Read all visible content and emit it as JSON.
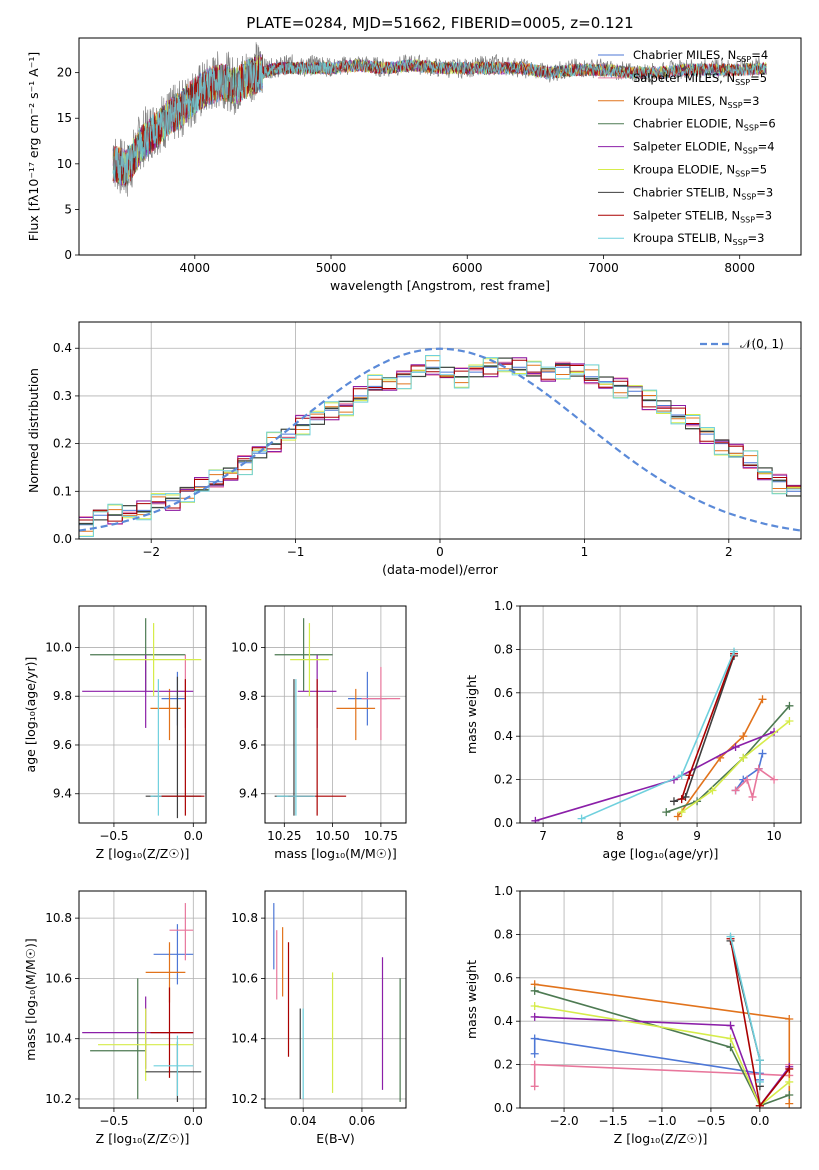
{
  "title": "PLATE=0284, MJD=51662, FIBERID=0005, z=0.121",
  "series_styles": [
    {
      "name": "Chabrier MILES",
      "nssp": "4",
      "color": "#4d77d6"
    },
    {
      "name": "Salpeter MILES",
      "nssp": "5",
      "color": "#e8779c"
    },
    {
      "name": "Kroupa MILES",
      "nssp": "3",
      "color": "#e1731c"
    },
    {
      "name": "Chabrier ELODIE",
      "nssp": "6",
      "color": "#4d7a52"
    },
    {
      "name": "Salpeter ELODIE",
      "nssp": "4",
      "color": "#8b1fa8"
    },
    {
      "name": "Kroupa ELODIE",
      "nssp": "5",
      "color": "#d6ec4a"
    },
    {
      "name": "Chabrier STELIB",
      "nssp": "3",
      "color": "#3e3e3e"
    },
    {
      "name": "Salpeter STELIB",
      "nssp": "3",
      "color": "#aa0000"
    },
    {
      "name": "Kroupa STELIB",
      "nssp": "3",
      "color": "#6fd0dd"
    }
  ],
  "chart_data": [
    {
      "id": "spectrum",
      "type": "line",
      "title": "PLATE=0284, MJD=51662, FIBERID=0005, z=0.121",
      "xlabel": "wavelength [Angstrom, rest frame]",
      "ylabel": "Flux [fλ10⁻¹⁷ erg cm⁻² s⁻¹ A⁻¹]",
      "xlim": [
        3150,
        8450
      ],
      "ylim": [
        0,
        23.8
      ],
      "xticks": [
        4000,
        5000,
        6000,
        7000,
        8000
      ],
      "yticks": [
        0,
        5,
        10,
        15,
        20
      ],
      "legend": "upper-right",
      "data_curve": {
        "color": "#808080",
        "x": [
          3400,
          3500,
          3600,
          3700,
          3800,
          3900,
          4000,
          4100,
          4200,
          4300,
          4400,
          4500,
          4600,
          4700,
          4800,
          4900,
          5000,
          5200,
          5400,
          5600,
          5800,
          6000,
          6200,
          6400,
          6600,
          6800,
          7000,
          7200,
          7400,
          7600,
          7800,
          8000,
          8200
        ],
        "y": [
          10.5,
          9,
          12.5,
          14,
          15,
          16,
          17.5,
          18.5,
          19.5,
          18.5,
          20,
          20.5,
          20.5,
          21,
          20.5,
          21,
          20.5,
          21,
          20.5,
          21,
          20.5,
          20.5,
          21,
          20.5,
          20,
          20.5,
          20.5,
          20,
          20,
          20.5,
          20.5,
          20.5,
          20.8
        ]
      },
      "model_curves": {
        "x": [
          3400,
          3500,
          3600,
          3700,
          3800,
          3900,
          4000,
          4100,
          4200,
          4300,
          4400,
          4500,
          4600,
          4700,
          4800,
          4900,
          5000,
          5200,
          5400,
          5600,
          5800,
          6000,
          6200,
          6400,
          6600,
          6800,
          7000,
          7200,
          7400,
          7600,
          7800,
          8000,
          8200
        ],
        "y": [
          10,
          9.5,
          12,
          13.5,
          15,
          16,
          17.5,
          18.5,
          19,
          18.5,
          19.5,
          20,
          20.5,
          20.5,
          20.5,
          20.5,
          20.5,
          20.8,
          20.5,
          20.8,
          20.5,
          20.5,
          20.5,
          20.5,
          20,
          20.3,
          20.3,
          20,
          20,
          20.3,
          20.3,
          20.3,
          20.5
        ]
      }
    },
    {
      "id": "residuals",
      "type": "histogram",
      "xlabel": "(data-model)/error",
      "ylabel": "Normed distribution",
      "xlim": [
        -2.5,
        2.5
      ],
      "ylim": [
        0,
        0.455
      ],
      "xticks": [
        -2,
        -1,
        0,
        1,
        2
      ],
      "yticks": [
        0,
        0.1,
        0.2,
        0.3,
        0.4
      ],
      "legend_label": "𝒩(0, 1)",
      "gaussian": {
        "mu": 0,
        "sigma": 1,
        "color": "#5b8ad8"
      },
      "bin_width": 0.1,
      "hist": [
        0.03,
        0.05,
        0.05,
        0.06,
        0.06,
        0.075,
        0.08,
        0.1,
        0.11,
        0.12,
        0.14,
        0.16,
        0.18,
        0.2,
        0.22,
        0.24,
        0.25,
        0.27,
        0.28,
        0.3,
        0.32,
        0.33,
        0.34,
        0.35,
        0.36,
        0.35,
        0.34,
        0.35,
        0.36,
        0.37,
        0.36,
        0.35,
        0.35,
        0.36,
        0.35,
        0.34,
        0.33,
        0.32,
        0.31,
        0.29,
        0.28,
        0.26,
        0.24,
        0.22,
        0.2,
        0.18,
        0.16,
        0.14,
        0.12,
        0.1
      ],
      "hist_offsets": [
        0.0,
        0.02,
        -0.015,
        0.01,
        -0.02,
        0.025,
        -0.01,
        0.015,
        -0.025
      ]
    },
    {
      "id": "age-vs-Z",
      "type": "errorbar",
      "xlabel": "Z [log₁₀(Z/Z☉)]",
      "ylabel": "age  [log₁₀(age/yr)]",
      "xlim": [
        -0.72,
        0.08
      ],
      "ylim": [
        9.28,
        10.17
      ],
      "xticks": [
        -0.5,
        0.0
      ],
      "yticks": [
        9.4,
        9.6,
        9.8,
        10.0
      ],
      "points": [
        {
          "x": -0.1,
          "xerr": [
            0.1,
            0.05
          ],
          "y": 9.79,
          "yerr": [
            0.11,
            0.11
          ]
        },
        {
          "x": -0.05,
          "xerr": [
            0.05,
            0.0
          ],
          "y": 9.82,
          "yerr": [
            0.15,
            0.15
          ]
        },
        {
          "x": -0.15,
          "xerr": [
            0.12,
            0.07
          ],
          "y": 9.75,
          "yerr": [
            0.13,
            0.08
          ]
        },
        {
          "x": -0.3,
          "xerr": [
            0.35,
            0.25
          ],
          "y": 9.97,
          "yerr": [
            0.15,
            0.15
          ]
        },
        {
          "x": -0.3,
          "xerr": [
            0.4,
            0.3
          ],
          "y": 9.82,
          "yerr": [
            0.15,
            0.15
          ]
        },
        {
          "x": -0.25,
          "xerr": [
            0.25,
            0.3
          ],
          "y": 9.95,
          "yerr": [
            0.15,
            0.15
          ]
        },
        {
          "x": -0.1,
          "xerr": [
            0.2,
            0.15
          ],
          "y": 9.39,
          "yerr": [
            0.09,
            0.49
          ]
        },
        {
          "x": -0.05,
          "xerr": [
            0.2,
            0.12
          ],
          "y": 9.39,
          "yerr": [
            0.08,
            0.48
          ]
        },
        {
          "x": -0.22,
          "xerr": [
            0.05,
            0.02
          ],
          "y": 9.39,
          "yerr": [
            0.08,
            0.48
          ]
        }
      ]
    },
    {
      "id": "age-vs-mass",
      "type": "errorbar",
      "xlabel": "mass [log₁₀(M/M☉)]",
      "ylabel": "",
      "xlim": [
        10.15,
        10.88
      ],
      "ylim": [
        9.28,
        10.17
      ],
      "xticks": [
        10.25,
        10.5,
        10.75
      ],
      "yticks": [
        9.4,
        9.6,
        9.8,
        10.0
      ],
      "points": [
        {
          "x": 10.68,
          "xerr": [
            0.1,
            0.1
          ],
          "y": 9.79,
          "yerr": [
            0.11,
            0.11
          ]
        },
        {
          "x": 10.75,
          "xerr": [
            0.1,
            0.1
          ],
          "y": 9.79,
          "yerr": [
            0.17,
            0.13
          ]
        },
        {
          "x": 10.62,
          "xerr": [
            0.1,
            0.1
          ],
          "y": 9.75,
          "yerr": [
            0.13,
            0.08
          ]
        },
        {
          "x": 10.35,
          "xerr": [
            0.15,
            0.15
          ],
          "y": 9.97,
          "yerr": [
            0.15,
            0.15
          ]
        },
        {
          "x": 10.42,
          "xerr": [
            0.1,
            0.1
          ],
          "y": 9.82,
          "yerr": [
            0.15,
            0.15
          ]
        },
        {
          "x": 10.38,
          "xerr": [
            0.1,
            0.1
          ],
          "y": 9.95,
          "yerr": [
            0.15,
            0.15
          ]
        },
        {
          "x": 10.3,
          "xerr": [
            0.1,
            0.1
          ],
          "y": 9.39,
          "yerr": [
            0.08,
            0.48
          ]
        },
        {
          "x": 10.42,
          "xerr": [
            0.15,
            0.15
          ],
          "y": 9.39,
          "yerr": [
            0.08,
            0.48
          ]
        },
        {
          "x": 10.31,
          "xerr": [
            0.1,
            0.1
          ],
          "y": 9.39,
          "yerr": [
            0.08,
            0.48
          ]
        }
      ]
    },
    {
      "id": "weight-vs-age",
      "type": "line",
      "xlabel": "age  [log₁₀(age/yr)]",
      "ylabel": "mass weight",
      "xlim": [
        6.7,
        10.35
      ],
      "ylim": [
        0,
        1.0
      ],
      "xticks": [
        7,
        8,
        9,
        10
      ],
      "yticks": [
        0.0,
        0.2,
        0.4,
        0.6,
        0.8,
        1.0
      ],
      "series": [
        {
          "x": [
            9.5,
            9.6,
            9.8,
            9.85
          ],
          "y": [
            0.15,
            0.2,
            0.25,
            0.32
          ]
        },
        {
          "x": [
            9.5,
            9.65,
            9.72,
            9.8,
            10.0
          ],
          "y": [
            0.15,
            0.2,
            0.12,
            0.25,
            0.2
          ]
        },
        {
          "x": [
            8.75,
            9.3,
            9.6,
            9.85
          ],
          "y": [
            0.03,
            0.3,
            0.4,
            0.57
          ]
        },
        {
          "x": [
            8.6,
            9.0,
            9.6,
            10.2
          ],
          "y": [
            0.05,
            0.1,
            0.3,
            0.54
          ]
        },
        {
          "x": [
            6.9,
            8.7,
            9.5,
            10.0
          ],
          "y": [
            0.01,
            0.2,
            0.35,
            0.42
          ]
        },
        {
          "x": [
            8.8,
            9.2,
            9.6,
            10.2
          ],
          "y": [
            0.05,
            0.15,
            0.3,
            0.47
          ]
        },
        {
          "x": [
            8.7,
            8.85,
            9.48
          ],
          "y": [
            0.1,
            0.12,
            0.77
          ]
        },
        {
          "x": [
            8.8,
            8.9,
            9.48
          ],
          "y": [
            0.11,
            0.22,
            0.78
          ]
        },
        {
          "x": [
            7.5,
            8.8,
            9.48
          ],
          "y": [
            0.02,
            0.22,
            0.79
          ]
        }
      ]
    },
    {
      "id": "mass-vs-Z",
      "type": "errorbar",
      "xlabel": "Z [log₁₀(Z/Z☉)]",
      "ylabel": "mass [log₁₀(M/M☉)]",
      "xlim": [
        -0.72,
        0.08
      ],
      "ylim": [
        10.17,
        10.89
      ],
      "xticks": [
        -0.5,
        0.0
      ],
      "yticks": [
        10.2,
        10.4,
        10.6,
        10.8
      ],
      "points": [
        {
          "x": -0.1,
          "xerr": [
            0.15,
            0.1
          ],
          "y": 10.68,
          "yerr": [
            0.1,
            0.1
          ]
        },
        {
          "x": -0.05,
          "xerr": [
            0.1,
            0.05
          ],
          "y": 10.76,
          "yerr": [
            0.1,
            0.09
          ]
        },
        {
          "x": -0.15,
          "xerr": [
            0.15,
            0.1
          ],
          "y": 10.62,
          "yerr": [
            0.1,
            0.1
          ]
        },
        {
          "x": -0.35,
          "xerr": [
            0.3,
            0.05
          ],
          "y": 10.36,
          "yerr": [
            0.16,
            0.24
          ]
        },
        {
          "x": -0.3,
          "xerr": [
            0.4,
            0.3
          ],
          "y": 10.42,
          "yerr": [
            0.12,
            0.12
          ]
        },
        {
          "x": -0.3,
          "xerr": [
            0.3,
            0.3
          ],
          "y": 10.38,
          "yerr": [
            0.12,
            0.12
          ]
        },
        {
          "x": -0.1,
          "xerr": [
            0.2,
            0.15
          ],
          "y": 10.29,
          "yerr": [
            0.1,
            0.1
          ]
        },
        {
          "x": -0.15,
          "xerr": [
            0.12,
            0.15
          ],
          "y": 10.42,
          "yerr": [
            0.15,
            0.15
          ]
        },
        {
          "x": -0.1,
          "xerr": [
            0.15,
            0.1
          ],
          "y": 10.31,
          "yerr": [
            0.1,
            0.1
          ]
        }
      ]
    },
    {
      "id": "mass-vs-EBV",
      "type": "errorbar",
      "xlabel": "E(B-V)",
      "ylabel": "",
      "xlim": [
        0.027,
        0.075
      ],
      "ylim": [
        10.17,
        10.89
      ],
      "xticks": [
        0.04,
        0.06
      ],
      "yticks": [
        10.2,
        10.4,
        10.6,
        10.8
      ],
      "points": [
        {
          "x": 0.03,
          "xerr": [
            0,
            0
          ],
          "y": 10.75,
          "yerr": [
            0.12,
            0.1
          ]
        },
        {
          "x": 0.031,
          "xerr": [
            0,
            0
          ],
          "y": 10.65,
          "yerr": [
            0.12,
            0.11
          ]
        },
        {
          "x": 0.033,
          "xerr": [
            0,
            0
          ],
          "y": 10.65,
          "yerr": [
            0.11,
            0.12
          ]
        },
        {
          "x": 0.073,
          "xerr": [
            0,
            0
          ],
          "y": 10.4,
          "yerr": [
            0.21,
            0.2
          ]
        },
        {
          "x": 0.067,
          "xerr": [
            0,
            0
          ],
          "y": 10.45,
          "yerr": [
            0.22,
            0.22
          ]
        },
        {
          "x": 0.05,
          "xerr": [
            0,
            0
          ],
          "y": 10.42,
          "yerr": [
            0.2,
            0.2
          ]
        },
        {
          "x": 0.039,
          "xerr": [
            0,
            0
          ],
          "y": 10.35,
          "yerr": [
            0.15,
            0.15
          ]
        },
        {
          "x": 0.035,
          "xerr": [
            0,
            0
          ],
          "y": 10.5,
          "yerr": [
            0.16,
            0.22
          ]
        },
        {
          "x": 0.04,
          "xerr": [
            0,
            0
          ],
          "y": 10.35,
          "yerr": [
            0.15,
            0.15
          ]
        }
      ]
    },
    {
      "id": "weight-vs-Z",
      "type": "line",
      "xlabel": "Z [log₁₀(Z/Z☉)]",
      "ylabel": "mass weight",
      "xlim": [
        -2.45,
        0.42
      ],
      "ylim": [
        0,
        1.0
      ],
      "xticks": [
        -2.0,
        -1.5,
        -1.0,
        -0.5,
        0.0
      ],
      "yticks": [
        0.0,
        0.2,
        0.4,
        0.6,
        0.8,
        1.0
      ],
      "series": [
        {
          "x": [
            -2.3,
            -2.3,
            0.0,
            0.0
          ],
          "y": [
            0.25,
            0.32,
            0.16,
            0.13
          ]
        },
        {
          "x": [
            -2.3,
            -2.3,
            0.3,
            0.3
          ],
          "y": [
            0.1,
            0.2,
            0.15,
            0.2
          ]
        },
        {
          "x": [
            -2.3,
            0.3,
            0.3
          ],
          "y": [
            0.57,
            0.41,
            0.02
          ]
        },
        {
          "x": [
            -2.3,
            -0.3,
            0.0,
            0.3
          ],
          "y": [
            0.54,
            0.28,
            0.01,
            0.06
          ]
        },
        {
          "x": [
            -2.3,
            -0.3,
            0.0,
            0.3
          ],
          "y": [
            0.42,
            0.38,
            0.01,
            0.19
          ]
        },
        {
          "x": [
            -2.3,
            -0.3,
            0.0,
            0.3
          ],
          "y": [
            0.47,
            0.32,
            0.01,
            0.12
          ]
        },
        {
          "x": [
            -0.3,
            0.0,
            0.0
          ],
          "y": [
            0.77,
            0.22,
            0.1
          ]
        },
        {
          "x": [
            -0.3,
            0.0,
            0.3
          ],
          "y": [
            0.78,
            0.01,
            0.18
          ]
        },
        {
          "x": [
            -0.3,
            0.0,
            0.0
          ],
          "y": [
            0.79,
            0.22,
            0.12
          ]
        }
      ]
    }
  ]
}
